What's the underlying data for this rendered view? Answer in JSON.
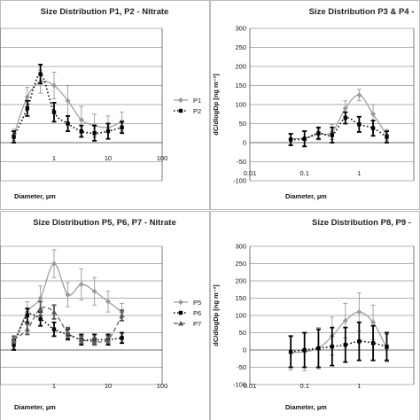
{
  "chart_data": [
    {
      "type": "line",
      "title": "Size Distribution P1, P2 - Nitrate",
      "xlabel": "Diameter, µm",
      "ylabel": "",
      "xscale": "log",
      "ylim": [
        -100,
        300
      ],
      "xticks": [
        1,
        10,
        100
      ],
      "xtick_labels": [
        "1",
        "10",
        "100"
      ],
      "yticks": [
        -100,
        -50,
        0,
        50,
        100,
        150,
        200,
        250,
        300
      ],
      "ytick_labels": [],
      "grid": true,
      "legend": "right",
      "series": [
        {
          "name": "P1",
          "style": "solid",
          "marker": "diamond",
          "color": "#999999",
          "x": [
            0.18,
            0.32,
            0.56,
            1.0,
            1.8,
            3.2,
            5.6,
            10,
            18
          ],
          "y": [
            20,
            120,
            160,
            150,
            110,
            60,
            45,
            40,
            55
          ],
          "err": [
            15,
            25,
            30,
            35,
            40,
            35,
            30,
            30,
            25
          ]
        },
        {
          "name": "P2",
          "style": "dotted",
          "marker": "square",
          "color": "#000000",
          "x": [
            0.18,
            0.32,
            0.56,
            1.0,
            1.8,
            3.2,
            5.6,
            10,
            18
          ],
          "y": [
            15,
            90,
            180,
            80,
            50,
            30,
            25,
            30,
            40
          ],
          "err": [
            15,
            20,
            25,
            25,
            20,
            15,
            20,
            20,
            15
          ]
        }
      ]
    },
    {
      "type": "line",
      "title": "Size Distribution P3 & P4 -",
      "xlabel": "Diameter, µm",
      "ylabel": "dC/dlogDp [ng m⁻³]",
      "xscale": "log",
      "ylim": [
        -100,
        300
      ],
      "xticks": [
        0.01,
        0.1,
        1
      ],
      "xtick_labels": [
        "0.01",
        "0.1",
        "1"
      ],
      "yticks": [
        -100,
        -50,
        0,
        50,
        100,
        150,
        200,
        250,
        300
      ],
      "ytick_labels": [
        "-100",
        "-50",
        "0",
        "50",
        "100",
        "150",
        "200",
        "250",
        "300"
      ],
      "grid": true,
      "series": [
        {
          "style": "solid",
          "marker": "diamond",
          "color": "#999999",
          "x": [
            0.056,
            0.1,
            0.18,
            0.32,
            0.56,
            1.0,
            1.8,
            3.2
          ],
          "y": [
            10,
            12,
            22,
            28,
            90,
            125,
            75,
            20
          ],
          "err": [
            15,
            20,
            15,
            20,
            20,
            15,
            25,
            15
          ]
        },
        {
          "style": "dotted",
          "marker": "square",
          "color": "#000000",
          "x": [
            0.056,
            0.1,
            0.18,
            0.32,
            0.56,
            1.0,
            1.8,
            3.2
          ],
          "y": [
            8,
            10,
            25,
            20,
            65,
            48,
            38,
            15
          ],
          "err": [
            15,
            20,
            15,
            20,
            15,
            20,
            20,
            15
          ]
        }
      ]
    },
    {
      "type": "line",
      "title": "Size Distribution P5, P6, P7 - Nitrate",
      "xlabel": "Diameter, µm",
      "ylabel": "",
      "xscale": "log",
      "ylim": [
        -100,
        300
      ],
      "xticks": [
        1,
        10,
        100
      ],
      "xtick_labels": [
        "1",
        "10",
        "100"
      ],
      "yticks": [
        -100,
        -50,
        0,
        50,
        100,
        150,
        200,
        250,
        300
      ],
      "ytick_labels": [],
      "grid": true,
      "legend": "right",
      "series": [
        {
          "name": "P5",
          "style": "solid",
          "marker": "diamond",
          "color": "#999999",
          "x": [
            0.18,
            0.32,
            0.56,
            1.0,
            1.8,
            3.2,
            5.6,
            10,
            18
          ],
          "y": [
            20,
            110,
            150,
            250,
            160,
            190,
            170,
            140,
            110
          ],
          "err": [
            15,
            30,
            35,
            40,
            35,
            45,
            40,
            30,
            25
          ]
        },
        {
          "name": "P6",
          "style": "dotted",
          "marker": "square",
          "color": "#000000",
          "x": [
            0.18,
            0.32,
            0.56,
            1.0,
            1.8,
            3.2,
            5.6,
            10,
            18
          ],
          "y": [
            15,
            100,
            90,
            60,
            45,
            30,
            30,
            30,
            35
          ],
          "err": [
            15,
            20,
            20,
            20,
            15,
            15,
            15,
            15,
            15
          ]
        },
        {
          "name": "P7",
          "style": "dashed",
          "marker": "triangle",
          "color": "#555555",
          "x": [
            0.18,
            0.32,
            0.56,
            1.0,
            1.8,
            3.2,
            5.6,
            10,
            18
          ],
          "y": [
            30,
            60,
            120,
            110,
            50,
            30,
            25,
            30,
            100
          ],
          "err": [
            10,
            15,
            20,
            20,
            15,
            10,
            10,
            10,
            15
          ]
        }
      ]
    },
    {
      "type": "line",
      "title": "Size Distribution P8, P9 -",
      "xlabel": "Diameter, µm",
      "ylabel": "dC/dlogDp [ng m⁻³]",
      "xscale": "log",
      "ylim": [
        -100,
        300
      ],
      "xticks": [
        0.01,
        0.1,
        1
      ],
      "xtick_labels": [
        "0.01",
        "0.1",
        "1"
      ],
      "yticks": [
        -100,
        -50,
        0,
        50,
        100,
        150,
        200,
        250,
        300
      ],
      "ytick_labels": [
        "-100",
        "-50",
        "0",
        "50",
        "100",
        "150",
        "200",
        "250",
        "300"
      ],
      "grid": true,
      "series": [
        {
          "style": "solid",
          "marker": "diamond",
          "color": "#999999",
          "x": [
            0.056,
            0.1,
            0.18,
            0.32,
            0.56,
            1.0,
            1.8,
            3.2
          ],
          "y": [
            -8,
            -5,
            5,
            40,
            85,
            110,
            80,
            5
          ],
          "err": [
            50,
            55,
            60,
            55,
            50,
            55,
            50,
            40
          ]
        },
        {
          "style": "dotted",
          "marker": "square",
          "color": "#000000",
          "x": [
            0.056,
            0.1,
            0.18,
            0.32,
            0.56,
            1.0,
            1.8,
            3.2
          ],
          "y": [
            -5,
            0,
            5,
            10,
            15,
            25,
            20,
            10
          ],
          "err": [
            45,
            50,
            55,
            55,
            50,
            55,
            50,
            40
          ]
        }
      ]
    }
  ]
}
